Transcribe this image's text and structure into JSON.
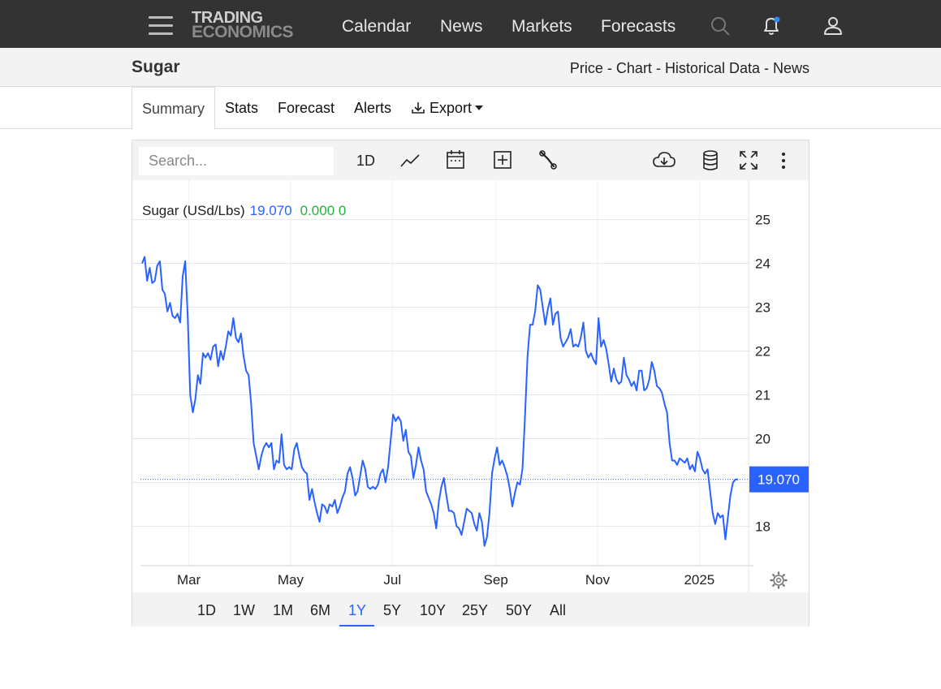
{
  "brand": {
    "line1": "TRADING",
    "line2": "ECONOMICS"
  },
  "nav": [
    {
      "label": "Calendar"
    },
    {
      "label": "News"
    },
    {
      "label": "Markets"
    },
    {
      "label": "Forecasts"
    }
  ],
  "header": {
    "title": "Sugar",
    "crumbs": [
      "Price",
      "Chart",
      "Historical Data",
      "News"
    ],
    "separator": " - "
  },
  "tabs": [
    {
      "label": "Summary",
      "active": true
    },
    {
      "label": "Stats"
    },
    {
      "label": "Forecast"
    },
    {
      "label": "Alerts"
    },
    {
      "label": "Export"
    }
  ],
  "toolbar": {
    "search_placeholder": "Search...",
    "interval_label": "1D"
  },
  "legend": {
    "name": "Sugar (USd/Lbs)",
    "value": "19.070",
    "change": "0.000 0"
  },
  "range_buttons": [
    "1D",
    "1W",
    "1M",
    "6M",
    "1Y",
    "5Y",
    "10Y",
    "25Y",
    "50Y",
    "All"
  ],
  "active_range": "1Y",
  "colors": {
    "accent": "#2962ff",
    "positive": "#22b33a",
    "topbar": "#333333",
    "price_tag_bg": "#2962ff"
  },
  "chart_data": {
    "type": "line",
    "series": [
      {
        "name": "Sugar (USd/Lbs)",
        "values": [
          24.0,
          24.15,
          23.6,
          23.9,
          23.55,
          23.6,
          23.95,
          24.05,
          23.4,
          23.3,
          22.9,
          23.1,
          22.8,
          22.75,
          22.85,
          22.65,
          23.7,
          24.05,
          22.8,
          21.0,
          20.6,
          20.9,
          21.45,
          21.25,
          21.95,
          21.85,
          21.95,
          21.8,
          22.1,
          22.15,
          21.65,
          22.0,
          21.8,
          22.1,
          22.45,
          22.35,
          22.75,
          22.3,
          22.2,
          22.4,
          21.9,
          21.55,
          21.45,
          20.8,
          19.9,
          19.6,
          19.3,
          19.6,
          19.8,
          19.9,
          19.8,
          19.9,
          19.3,
          19.5,
          19.45,
          20.1,
          19.4,
          19.3,
          19.35,
          19.3,
          19.75,
          19.9,
          19.6,
          19.35,
          19.25,
          19.2,
          18.6,
          18.85,
          18.55,
          18.3,
          18.1,
          18.5,
          18.45,
          18.3,
          18.5,
          18.45,
          18.6,
          18.3,
          18.45,
          18.65,
          18.8,
          19.2,
          19.35,
          19.1,
          18.7,
          18.8,
          19.15,
          19.5,
          19.3,
          18.9,
          18.85,
          18.9,
          18.85,
          18.95,
          19.2,
          19.3,
          19.0,
          19.35,
          19.95,
          20.55,
          20.4,
          20.5,
          20.4,
          19.95,
          20.2,
          19.7,
          19.6,
          19.1,
          19.4,
          19.8,
          19.5,
          19.3,
          18.8,
          18.65,
          18.5,
          18.3,
          17.95,
          18.55,
          18.9,
          19.1,
          18.7,
          18.35,
          18.35,
          18.3,
          18.0,
          17.95,
          17.8,
          18.1,
          18.4,
          18.35,
          18.3,
          18.05,
          17.9,
          18.3,
          18.1,
          17.55,
          17.75,
          18.3,
          19.2,
          19.55,
          19.8,
          19.4,
          19.5,
          19.35,
          19.15,
          18.85,
          18.45,
          18.75,
          19.0,
          18.95,
          19.3,
          20.5,
          21.9,
          22.6,
          22.6,
          22.9,
          23.5,
          23.4,
          23.0,
          22.6,
          22.95,
          23.2,
          22.6,
          22.85,
          22.9,
          22.3,
          22.1,
          22.2,
          22.3,
          22.5,
          22.1,
          22.15,
          22.1,
          22.3,
          22.65,
          22.0,
          21.85,
          21.95,
          21.8,
          21.7,
          22.75,
          22.1,
          22.25,
          22.05,
          21.7,
          21.3,
          21.6,
          21.35,
          21.25,
          21.3,
          21.85,
          21.45,
          21.35,
          21.2,
          21.3,
          21.1,
          21.55,
          21.55,
          21.1,
          21.15,
          21.35,
          21.75,
          21.55,
          21.2,
          21.15,
          21.05,
          20.8,
          20.6,
          19.9,
          19.5,
          19.5,
          19.4,
          19.55,
          19.5,
          19.45,
          19.55,
          19.3,
          19.4,
          19.25,
          19.7,
          19.55,
          19.3,
          19.2,
          19.3,
          18.8,
          18.3,
          18.05,
          18.3,
          18.2,
          18.25,
          17.7,
          18.2,
          18.7,
          19.0,
          19.07,
          19.07
        ]
      }
    ],
    "x_start": "2024-02-01",
    "x_end": "2025-01-31",
    "x_tick_labels": [
      "Mar",
      "May",
      "Jul",
      "Sep",
      "Nov",
      "2025"
    ],
    "y_tick_labels": [
      "25",
      "24",
      "23",
      "22",
      "21",
      "20",
      "18"
    ],
    "ylim": [
      17.1,
      25.9
    ],
    "last_value": 19.07,
    "grid": true,
    "legend": "top-left"
  }
}
